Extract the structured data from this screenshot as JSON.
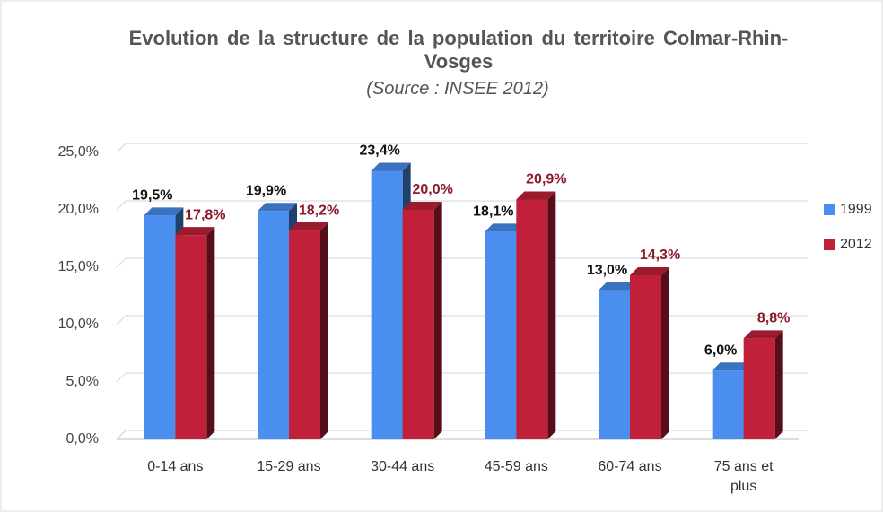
{
  "chart_data": {
    "type": "bar3d",
    "title": "Evolution de la structure de la population du territoire Colmar-Rhin-Vosges",
    "subtitle": "(Source : INSEE 2012)",
    "categories": [
      "0-14 ans",
      "15-29 ans",
      "30-44 ans",
      "45-59 ans",
      "60-74 ans",
      "75 ans et plus"
    ],
    "series": [
      {
        "name": "1999",
        "color": "#4a8ef0",
        "values": [
          19.5,
          19.9,
          23.4,
          18.1,
          13.0,
          6.0
        ],
        "value_labels": [
          "19,5%",
          "19,9%",
          "23,4%",
          "18,1%",
          "13,0%",
          "6,0%"
        ]
      },
      {
        "name": "2012",
        "color": "#c0203a",
        "values": [
          17.8,
          18.2,
          20.0,
          20.9,
          14.3,
          8.8
        ],
        "value_labels": [
          "17,8%",
          "18,2%",
          "20,0%",
          "20,9%",
          "14,3%",
          "8,8%"
        ]
      }
    ],
    "ylim": [
      0,
      25
    ],
    "yticks": [
      {
        "value": 0,
        "label": "0,0%"
      },
      {
        "value": 5,
        "label": "5,0%"
      },
      {
        "value": 10,
        "label": "10,0%"
      },
      {
        "value": 15,
        "label": "15,0%"
      },
      {
        "value": 20,
        "label": "20,0%"
      },
      {
        "value": 25,
        "label": "25,0%"
      }
    ],
    "grid": true,
    "legend": "right"
  }
}
